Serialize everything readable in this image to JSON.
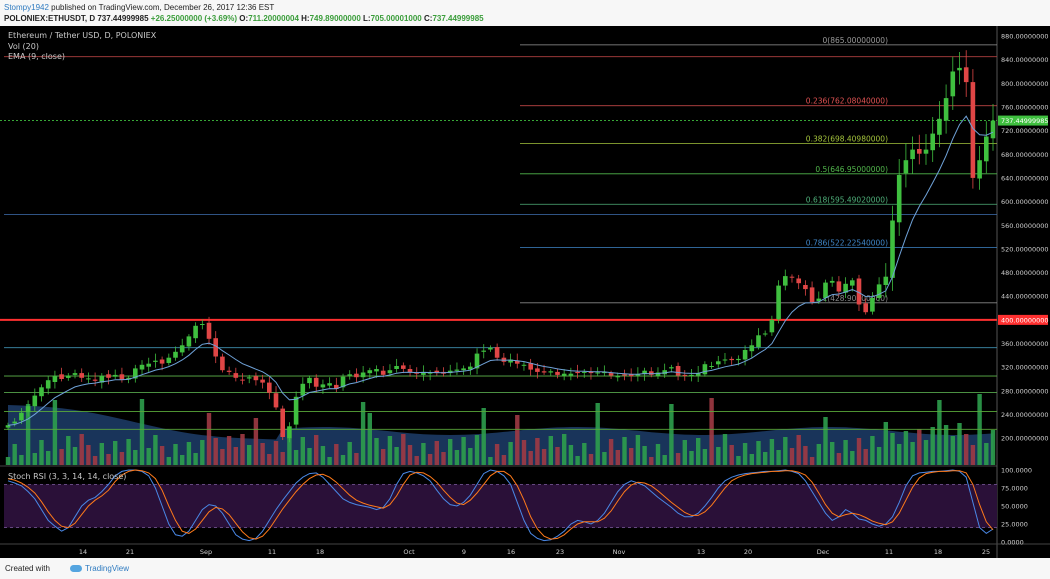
{
  "header": {
    "user": "Stompy1942",
    "published": "published on TradingView.com, December 26, 2017 12:36 EST",
    "symbol": "POLONIEX:ETHUSDT, D",
    "last": "737.44999985",
    "change": "+26.25000000 (+3.69%)",
    "ohlc_o_label": "O:",
    "ohlc_o": "711.20000004",
    "ohlc_h_label": "H:",
    "ohlc_h": "749.89000000",
    "ohlc_l_label": "L:",
    "ohlc_l": "705.00001000",
    "ohlc_c_label": "C:",
    "ohlc_c": "737.44999985"
  },
  "footer": {
    "created_with": "Created with",
    "brand": "TradingView"
  },
  "colors": {
    "background": "#000000",
    "up": "#3fbf3f",
    "down": "#e04646",
    "ema": "#6fa2d8",
    "support_line": "#ff3030",
    "rsi_k": "#4a88e6",
    "rsi_d": "#ff7a1a",
    "rsi_band": "#2a1038"
  },
  "chart_data": [
    {
      "type": "candlestick",
      "title": "Ethereum / Tether USD, D, POLONIEX",
      "indicators": [
        "Vol (20)",
        "EMA (9, close)"
      ],
      "ylim": [
        180,
        880
      ],
      "y_ticks": [
        "880.00000000",
        "840.00000000",
        "800.00000000",
        "760.00000000",
        "720.00000000",
        "680.00000000",
        "640.00000000",
        "600.00000000",
        "560.00000000",
        "520.00000000",
        "480.00000000",
        "440.00000000",
        "400.00000000",
        "360.00000000",
        "320.00000000",
        "280.00000000",
        "240.00000000",
        "200.00000000"
      ],
      "last_price_label": "737.44999985",
      "level_label": "400.00000000",
      "level_value": 400,
      "x_ticks": [
        "14",
        "21",
        "Sep",
        "11",
        "18",
        "Oct",
        "9",
        "16",
        "23",
        "Nov",
        "13",
        "20",
        "Dec",
        "11",
        "18",
        "25"
      ],
      "fib_levels": [
        {
          "label": "0(865.00000000)",
          "value": 865,
          "color": "#9a9a9a"
        },
        {
          "label": "0.236(762.08040000)",
          "value": 762.08,
          "color": "#e05252"
        },
        {
          "label": "0.382(698.40980000)",
          "value": 698.41,
          "color": "#a4c43c"
        },
        {
          "label": "0.5(646.95000000)",
          "value": 646.95,
          "color": "#52b84c"
        },
        {
          "label": "0.618(595.49020000)",
          "value": 595.49,
          "color": "#4fb07a"
        },
        {
          "label": "0.786(522.22540000)",
          "value": 522.23,
          "color": "#3f86c8"
        },
        {
          "label": "1(428.90000000)",
          "value": 428.9,
          "color": "#888888"
        }
      ],
      "horizontal_lines": [
        845,
        578,
        353,
        305,
        277
      ],
      "closes": [
        222,
        228,
        243,
        254,
        272,
        286,
        298,
        305,
        300,
        306,
        310,
        302,
        301,
        297,
        305,
        302,
        307,
        299,
        302,
        318,
        324,
        326,
        331,
        326,
        336,
        346,
        357,
        372,
        390,
        393,
        368,
        338,
        315,
        312,
        302,
        298,
        303,
        298,
        294,
        277,
        252,
        202,
        220,
        270,
        292,
        302,
        287,
        291,
        293,
        283,
        304,
        308,
        303,
        311,
        315,
        317,
        307,
        315,
        322,
        317,
        312,
        309,
        312,
        311,
        310,
        309,
        314,
        316,
        318,
        321,
        343,
        348,
        353,
        336,
        329,
        333,
        326,
        324,
        316,
        312,
        311,
        313,
        307,
        309,
        309,
        310,
        312,
        310,
        311,
        312,
        306,
        305,
        306,
        305,
        308,
        314,
        307,
        311,
        315,
        320,
        306,
        306,
        307,
        310,
        325,
        322,
        330,
        333,
        332,
        334,
        349,
        357,
        374,
        377,
        400,
        458,
        474,
        472,
        462,
        452,
        430,
        436,
        463,
        466,
        448,
        461,
        467,
        426,
        413,
        437,
        460,
        473,
        568,
        645,
        670,
        688,
        681,
        688,
        715,
        740,
        775,
        820,
        826,
        802,
        640,
        670,
        710,
        737
      ],
      "volume_note": "Vol (20) bars with moving average area"
    },
    {
      "type": "line",
      "title": "Stoch RSI (3, 3, 14, 14, close)",
      "ylim": [
        0,
        100
      ],
      "y_ticks": [
        "100.0000",
        "75.0000",
        "50.0000",
        "25.0000",
        "0.0000"
      ],
      "bands": [
        80,
        20
      ],
      "series": [
        {
          "name": "K",
          "values": [
            85,
            82,
            78,
            70,
            60,
            45,
            30,
            22,
            15,
            20,
            35,
            50,
            58,
            62,
            70,
            80,
            92,
            98,
            100,
            100,
            98,
            92,
            75,
            50,
            25,
            10,
            8,
            15,
            30,
            45,
            52,
            50,
            40,
            25,
            10,
            4,
            2,
            5,
            15,
            30,
            45,
            58,
            70,
            82,
            90,
            95,
            96,
            90,
            80,
            70,
            60,
            55,
            52,
            50,
            48,
            45,
            48,
            60,
            80,
            95,
            98,
            96,
            92,
            85,
            72,
            60,
            52,
            50,
            55,
            65,
            80,
            95,
            100,
            98,
            92,
            80,
            55,
            30,
            12,
            5,
            2,
            3,
            8,
            15,
            25,
            30,
            28,
            25,
            30,
            40,
            55,
            70,
            80,
            85,
            82,
            78,
            70,
            62,
            55,
            48,
            40,
            35,
            35,
            40,
            50,
            62,
            75,
            85,
            90,
            93,
            95,
            96,
            97,
            98,
            98,
            99,
            100,
            98,
            95,
            85,
            70,
            55,
            40,
            30,
            35,
            45,
            40,
            32,
            30,
            25,
            22,
            25,
            35,
            55,
            78,
            92,
            96,
            97,
            98,
            98,
            99,
            100,
            98,
            90,
            55,
            20,
            12,
            18
          ]
        },
        {
          "name": "D",
          "values": [
            88,
            86,
            82,
            76,
            68,
            56,
            42,
            30,
            22,
            20,
            26,
            38,
            50,
            58,
            64,
            72,
            84,
            93,
            98,
            100,
            99,
            96,
            88,
            72,
            50,
            30,
            15,
            12,
            18,
            30,
            42,
            48,
            46,
            38,
            26,
            14,
            6,
            4,
            8,
            18,
            32,
            46,
            58,
            70,
            80,
            88,
            93,
            94,
            90,
            83,
            74,
            65,
            58,
            54,
            51,
            49,
            47,
            52,
            64,
            80,
            93,
            97,
            96,
            91,
            83,
            72,
            62,
            54,
            52,
            58,
            68,
            80,
            92,
            98,
            98,
            92,
            78,
            58,
            35,
            18,
            8,
            4,
            5,
            10,
            18,
            25,
            28,
            28,
            28,
            33,
            43,
            57,
            70,
            79,
            83,
            82,
            78,
            71,
            63,
            55,
            48,
            41,
            37,
            37,
            42,
            51,
            63,
            75,
            85,
            90,
            93,
            95,
            96,
            97,
            98,
            98,
            99,
            99,
            97,
            93,
            83,
            68,
            52,
            40,
            35,
            38,
            40,
            38,
            34,
            29,
            26,
            24,
            28,
            40,
            58,
            76,
            89,
            95,
            97,
            98,
            98,
            99,
            99,
            96,
            80,
            52,
            28,
            17
          ]
        }
      ]
    }
  ]
}
